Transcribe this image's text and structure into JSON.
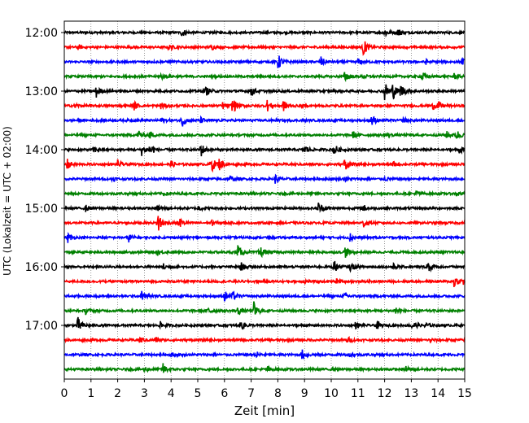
{
  "chart_data": {
    "type": "line",
    "title": "",
    "xlabel": "Zeit  [min]",
    "ylabel": "UTC (Lokalzeit = UTC + 02:00)",
    "xlim": [
      0,
      15
    ],
    "xticks": [
      "0",
      "1",
      "2",
      "3",
      "4",
      "5",
      "6",
      "7",
      "8",
      "9",
      "10",
      "11",
      "12",
      "13",
      "14",
      "15"
    ],
    "vertical_grid": "dotted",
    "y_tick_labels": [
      "12:00",
      "13:00",
      "14:00",
      "15:00",
      "16:00",
      "17:00"
    ],
    "trace_interval_minutes": 15,
    "trace_colors": [
      "#000000",
      "#ff0000",
      "#0000ff",
      "#008000"
    ],
    "traces": [
      {
        "time": "12:00",
        "events": [
          [
            4.4,
            0.5
          ],
          [
            12.0,
            0.55
          ],
          [
            12.5,
            0.45
          ]
        ]
      },
      {
        "time": "12:15",
        "events": [
          [
            0.5,
            0.25
          ],
          [
            3.9,
            0.3
          ],
          [
            5.5,
            0.3
          ],
          [
            11.2,
            1.0
          ]
        ]
      },
      {
        "time": "12:30",
        "events": [
          [
            8.0,
            0.9
          ],
          [
            9.6,
            0.6
          ],
          [
            11.0,
            0.3
          ],
          [
            13.5,
            0.35
          ],
          [
            14.9,
            0.35
          ]
        ]
      },
      {
        "time": "12:45",
        "events": [
          [
            3.6,
            0.35
          ],
          [
            10.5,
            0.55
          ],
          [
            11.2,
            0.2
          ],
          [
            13.4,
            0.55
          ],
          [
            14.6,
            0.3
          ]
        ]
      },
      {
        "time": "13:00",
        "events": [
          [
            1.2,
            0.7
          ],
          [
            5.3,
            0.5
          ],
          [
            7.0,
            0.6
          ],
          [
            12.0,
            1.1
          ],
          [
            12.3,
            0.9
          ],
          [
            12.6,
            0.8
          ]
        ]
      },
      {
        "time": "13:15",
        "events": [
          [
            0.4,
            0.25
          ],
          [
            2.6,
            0.5
          ],
          [
            3.6,
            0.45
          ],
          [
            5.9,
            0.45
          ],
          [
            6.3,
            1.0
          ],
          [
            7.6,
            0.6
          ],
          [
            8.2,
            0.6
          ],
          [
            13.8,
            0.35
          ],
          [
            14.0,
            0.45
          ]
        ]
      },
      {
        "time": "13:30",
        "events": [
          [
            3.6,
            0.35
          ],
          [
            4.4,
            0.75
          ],
          [
            5.1,
            0.3
          ],
          [
            11.5,
            0.7
          ],
          [
            12.7,
            0.3
          ]
        ]
      },
      {
        "time": "13:45",
        "events": [
          [
            2.8,
            0.55
          ],
          [
            3.2,
            0.35
          ],
          [
            10.8,
            0.4
          ],
          [
            12.0,
            0.35
          ],
          [
            14.3,
            0.45
          ],
          [
            14.7,
            0.55
          ]
        ]
      },
      {
        "time": "14:00",
        "events": [
          [
            1.1,
            0.35
          ],
          [
            2.9,
            0.6
          ],
          [
            3.2,
            0.8
          ],
          [
            5.1,
            0.9
          ],
          [
            9.0,
            0.6
          ],
          [
            10.1,
            0.7
          ],
          [
            14.8,
            0.4
          ]
        ]
      },
      {
        "time": "14:15",
        "events": [
          [
            0.1,
            0.6
          ],
          [
            2.0,
            0.45
          ],
          [
            4.0,
            0.35
          ],
          [
            5.5,
            1.0
          ],
          [
            5.8,
            0.6
          ],
          [
            10.5,
            0.7
          ],
          [
            12.3,
            0.3
          ]
        ]
      },
      {
        "time": "14:30",
        "events": [
          [
            1.8,
            0.25
          ],
          [
            6.2,
            0.35
          ],
          [
            7.9,
            0.45
          ],
          [
            10.5,
            0.3
          ],
          [
            12.0,
            0.2
          ]
        ]
      },
      {
        "time": "14:45",
        "events": [
          [
            3.7,
            0.2
          ],
          [
            13.2,
            0.3
          ],
          [
            14.7,
            0.25
          ]
        ]
      },
      {
        "time": "15:00",
        "events": [
          [
            0.8,
            0.35
          ],
          [
            3.5,
            0.35
          ],
          [
            5.0,
            0.3
          ],
          [
            9.5,
            0.8
          ],
          [
            11.2,
            0.4
          ]
        ]
      },
      {
        "time": "15:15",
        "events": [
          [
            3.5,
            1.4
          ],
          [
            4.3,
            0.6
          ],
          [
            5.5,
            0.35
          ],
          [
            11.2,
            0.5
          ]
        ]
      },
      {
        "time": "15:30",
        "events": [
          [
            0.1,
            0.7
          ],
          [
            2.4,
            0.5
          ],
          [
            10.7,
            0.5
          ]
        ]
      },
      {
        "time": "15:45",
        "events": [
          [
            3.5,
            0.3
          ],
          [
            6.5,
            0.7
          ],
          [
            7.3,
            0.9
          ],
          [
            10.5,
            0.7
          ]
        ]
      },
      {
        "time": "16:00",
        "events": [
          [
            3.7,
            0.35
          ],
          [
            6.6,
            0.55
          ],
          [
            10.1,
            0.8
          ],
          [
            10.7,
            0.45
          ],
          [
            12.3,
            0.35
          ],
          [
            13.6,
            0.9
          ]
        ]
      },
      {
        "time": "16:15",
        "events": [
          [
            9.0,
            0.2
          ],
          [
            10.2,
            0.25
          ],
          [
            14.6,
            0.7
          ],
          [
            14.9,
            0.45
          ]
        ]
      },
      {
        "time": "16:30",
        "events": [
          [
            2.9,
            0.5
          ],
          [
            6.0,
            0.6
          ],
          [
            6.3,
            0.45
          ],
          [
            10.5,
            0.35
          ]
        ]
      },
      {
        "time": "16:45",
        "events": [
          [
            0.8,
            0.35
          ],
          [
            5.4,
            0.45
          ],
          [
            6.5,
            0.5
          ],
          [
            7.1,
            1.0
          ],
          [
            12.4,
            0.55
          ]
        ]
      },
      {
        "time": "17:00",
        "events": [
          [
            0.5,
            0.95
          ],
          [
            3.6,
            0.35
          ],
          [
            6.6,
            0.65
          ],
          [
            10.9,
            0.3
          ],
          [
            11.7,
            0.5
          ],
          [
            13.0,
            0.7
          ],
          [
            13.5,
            0.35
          ]
        ]
      },
      {
        "time": "17:15",
        "events": [
          [
            2.8,
            0.45
          ],
          [
            3.4,
            0.3
          ],
          [
            10.6,
            0.35
          ],
          [
            13.7,
            0.2
          ]
        ]
      },
      {
        "time": "17:30",
        "events": [
          [
            4.0,
            0.2
          ],
          [
            7.2,
            0.3
          ],
          [
            8.9,
            0.55
          ],
          [
            10.7,
            0.35
          ]
        ]
      },
      {
        "time": "17:45",
        "events": [
          [
            3.0,
            0.3
          ],
          [
            3.7,
            0.6
          ],
          [
            7.6,
            0.3
          ],
          [
            12.8,
            0.4
          ]
        ]
      }
    ]
  }
}
